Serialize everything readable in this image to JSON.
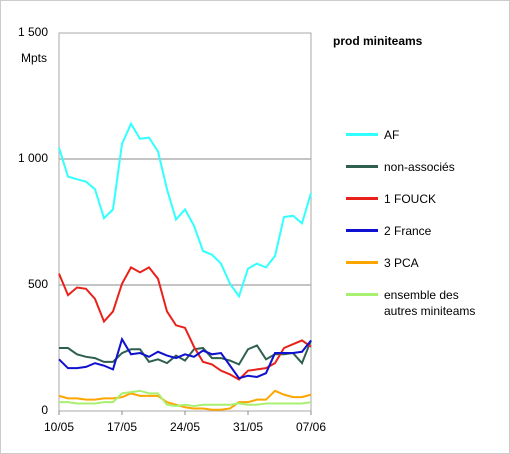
{
  "chart_data": {
    "type": "line",
    "title": "prod miniteams",
    "y_label": "Mpts",
    "categories": [
      "10/05",
      null,
      null,
      null,
      null,
      null,
      null,
      "17/05",
      null,
      null,
      null,
      null,
      null,
      null,
      "24/05",
      null,
      null,
      null,
      null,
      null,
      null,
      "31/05",
      null,
      null,
      null,
      null,
      null,
      null,
      "07/06"
    ],
    "ylim": [
      0,
      1500
    ],
    "yticks": [
      0,
      500,
      {
        "value": 1000,
        "label": "1 000"
      },
      {
        "value": 1500,
        "label": "1 500"
      }
    ],
    "grid": true,
    "series": [
      {
        "name": "AF",
        "color": "#33ffff",
        "values": [
          1045,
          930,
          920,
          910,
          880,
          765,
          800,
          1060,
          1140,
          1080,
          1085,
          1030,
          880,
          760,
          800,
          735,
          635,
          620,
          585,
          505,
          455,
          565,
          585,
          570,
          615,
          770,
          775,
          745,
          865
        ]
      },
      {
        "name": "non-associés",
        "color": "#2f5f4f",
        "values": [
          250,
          250,
          225,
          215,
          210,
          195,
          195,
          230,
          245,
          245,
          195,
          205,
          190,
          220,
          200,
          245,
          250,
          210,
          210,
          200,
          185,
          245,
          260,
          205,
          225,
          225,
          230,
          190,
          280
        ]
      },
      {
        "name": "1 FOUCK",
        "color": "#e8221b",
        "values": [
          545,
          460,
          490,
          485,
          445,
          355,
          395,
          505,
          570,
          550,
          570,
          525,
          395,
          340,
          330,
          255,
          195,
          185,
          160,
          145,
          125,
          160,
          165,
          170,
          190,
          250,
          265,
          280,
          255
        ]
      },
      {
        "name": "2 France",
        "color": "#1010d0",
        "values": [
          205,
          170,
          170,
          175,
          190,
          180,
          165,
          285,
          225,
          230,
          215,
          235,
          220,
          210,
          225,
          215,
          240,
          225,
          230,
          180,
          130,
          140,
          135,
          150,
          230,
          230,
          230,
          235,
          280
        ]
      },
      {
        "name": "3 PCA",
        "color": "#ffa500",
        "values": [
          60,
          50,
          50,
          45,
          45,
          50,
          50,
          55,
          70,
          60,
          60,
          60,
          35,
          25,
          15,
          10,
          10,
          5,
          5,
          10,
          35,
          35,
          45,
          45,
          80,
          65,
          55,
          55,
          65
        ]
      },
      {
        "name": "ensemble des autres miniteams",
        "color": "#a8f070",
        "values": [
          35,
          35,
          30,
          30,
          30,
          35,
          35,
          70,
          75,
          80,
          70,
          70,
          25,
          20,
          25,
          20,
          25,
          25,
          25,
          25,
          30,
          25,
          25,
          30,
          30,
          30,
          30,
          30,
          35
        ]
      }
    ]
  }
}
